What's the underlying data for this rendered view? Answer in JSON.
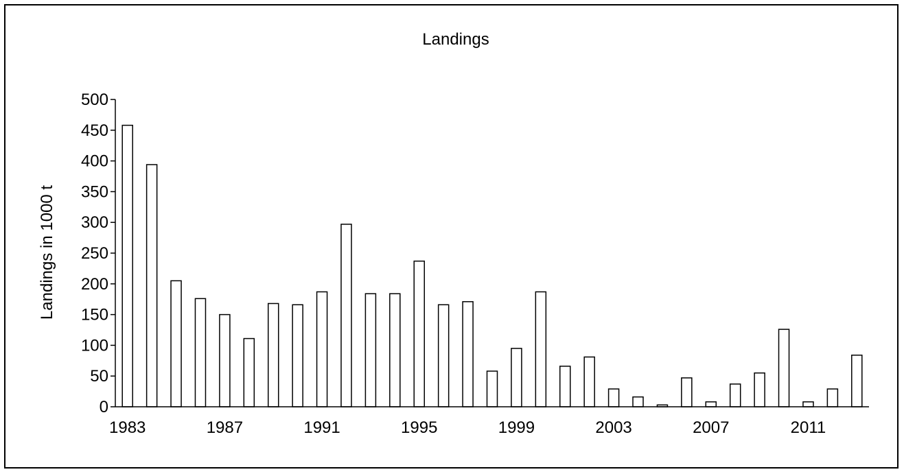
{
  "chart_data": {
    "type": "bar",
    "title": "Landings",
    "xlabel": "",
    "ylabel": "Landings in 1000 t",
    "ylim": [
      0,
      500
    ],
    "yticks": [
      0,
      50,
      100,
      150,
      200,
      250,
      300,
      350,
      400,
      450,
      500
    ],
    "categories": [
      1983,
      1984,
      1985,
      1986,
      1987,
      1988,
      1989,
      1990,
      1991,
      1992,
      1993,
      1994,
      1995,
      1996,
      1997,
      1998,
      1999,
      2000,
      2001,
      2002,
      2003,
      2004,
      2005,
      2006,
      2007,
      2008,
      2009,
      2010,
      2011,
      2012,
      2013
    ],
    "x_tick_labels": [
      "1983",
      "1987",
      "1991",
      "1995",
      "1999",
      "2003",
      "2007",
      "2011"
    ],
    "values": [
      458,
      394,
      205,
      176,
      150,
      111,
      168,
      166,
      187,
      297,
      184,
      184,
      237,
      166,
      171,
      58,
      95,
      187,
      66,
      81,
      29,
      16,
      3,
      47,
      8,
      37,
      55,
      126,
      8,
      29,
      84
    ],
    "grid": false,
    "legend": "none",
    "colors": {
      "bar_fill": "#ffffff",
      "bar_stroke": "#000000",
      "axis": "#000000"
    }
  }
}
